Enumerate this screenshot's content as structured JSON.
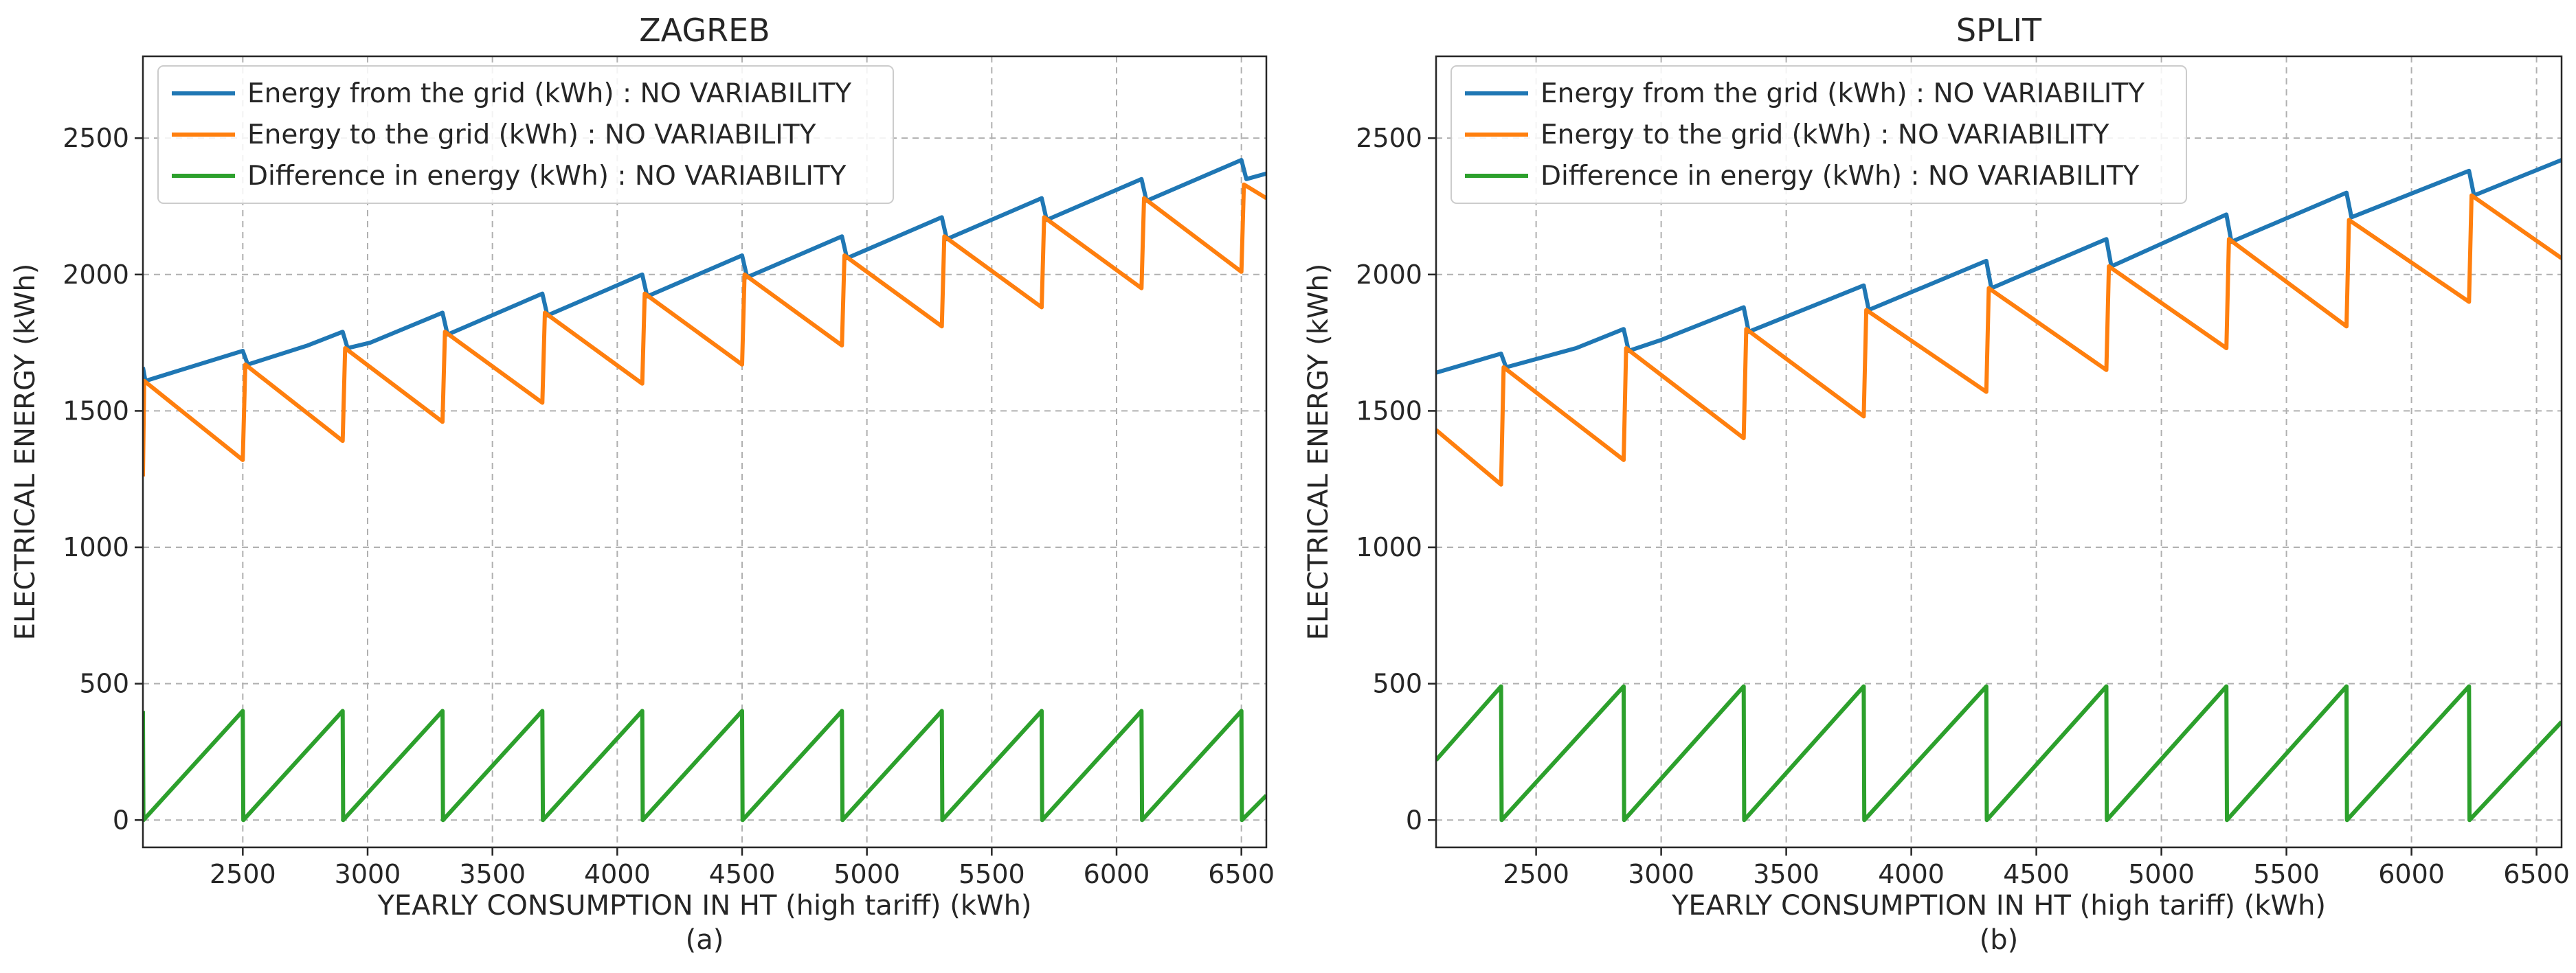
{
  "chart_data": [
    {
      "type": "line",
      "title": "ZAGREB",
      "caption": "(a)",
      "xlabel": "YEARLY CONSUMPTION IN HT (high tariff) (kWh)",
      "ylabel": "ELECTRICAL ENERGY (kWh)",
      "xlim": [
        2100,
        6600
      ],
      "ylim": [
        -100,
        2800
      ],
      "xticks": [
        2500,
        3000,
        3500,
        4000,
        4500,
        5000,
        5500,
        6000,
        6500
      ],
      "yticks": [
        0,
        500,
        1000,
        1500,
        2000,
        2500
      ],
      "grid": true,
      "legend_position": "top-left",
      "series": [
        {
          "name": "Energy from the grid (kWh) : NO VARIABILITY",
          "color": "#1f77b4",
          "points": [
            [
              2100,
              1660
            ],
            [
              2110,
              1610
            ],
            [
              2500,
              1720
            ],
            [
              2520,
              1670
            ],
            [
              2760,
              1740
            ],
            [
              2900,
              1790
            ],
            [
              2920,
              1730
            ],
            [
              3010,
              1750
            ],
            [
              3300,
              1860
            ],
            [
              3320,
              1780
            ],
            [
              3700,
              1930
            ],
            [
              3720,
              1850
            ],
            [
              4100,
              2000
            ],
            [
              4120,
              1920
            ],
            [
              4500,
              2070
            ],
            [
              4520,
              1990
            ],
            [
              4900,
              2140
            ],
            [
              4920,
              2060
            ],
            [
              5300,
              2210
            ],
            [
              5320,
              2130
            ],
            [
              5700,
              2280
            ],
            [
              5720,
              2200
            ],
            [
              6100,
              2350
            ],
            [
              6120,
              2270
            ],
            [
              6500,
              2420
            ],
            [
              6520,
              2350
            ],
            [
              6600,
              2370
            ]
          ]
        },
        {
          "name": "Energy to the grid (kWh) : NO VARIABILITY",
          "color": "#ff7f0e",
          "points": [
            [
              2100,
              1260
            ],
            [
              2105,
              1610
            ],
            [
              2500,
              1320
            ],
            [
              2510,
              1670
            ],
            [
              2900,
              1390
            ],
            [
              2910,
              1730
            ],
            [
              3300,
              1460
            ],
            [
              3310,
              1790
            ],
            [
              3700,
              1530
            ],
            [
              3710,
              1860
            ],
            [
              4100,
              1600
            ],
            [
              4110,
              1930
            ],
            [
              4500,
              1670
            ],
            [
              4510,
              2000
            ],
            [
              4900,
              1740
            ],
            [
              4910,
              2070
            ],
            [
              5300,
              1810
            ],
            [
              5310,
              2140
            ],
            [
              5700,
              1880
            ],
            [
              5710,
              2210
            ],
            [
              6100,
              1950
            ],
            [
              6110,
              2280
            ],
            [
              6500,
              2010
            ],
            [
              6510,
              2330
            ],
            [
              6600,
              2280
            ]
          ]
        },
        {
          "name": "Difference in energy (kWh) : NO VARIABILITY",
          "color": "#2ca02c",
          "points": [
            [
              2100,
              400
            ],
            [
              2102,
              0
            ],
            [
              2500,
              400
            ],
            [
              2502,
              0
            ],
            [
              2900,
              400
            ],
            [
              2902,
              0
            ],
            [
              3300,
              400
            ],
            [
              3302,
              0
            ],
            [
              3700,
              400
            ],
            [
              3702,
              0
            ],
            [
              4100,
              400
            ],
            [
              4102,
              0
            ],
            [
              4500,
              400
            ],
            [
              4502,
              0
            ],
            [
              4900,
              400
            ],
            [
              4902,
              0
            ],
            [
              5300,
              400
            ],
            [
              5302,
              0
            ],
            [
              5700,
              400
            ],
            [
              5702,
              0
            ],
            [
              6100,
              400
            ],
            [
              6102,
              0
            ],
            [
              6500,
              400
            ],
            [
              6502,
              0
            ],
            [
              6600,
              90
            ]
          ]
        }
      ]
    },
    {
      "type": "line",
      "title": "SPLIT",
      "caption": "(b)",
      "xlabel": "YEARLY CONSUMPTION IN HT (high tariff) (kWh)",
      "ylabel": "ELECTRICAL ENERGY (kWh)",
      "xlim": [
        2100,
        6600
      ],
      "ylim": [
        -100,
        2800
      ],
      "xticks": [
        2500,
        3000,
        3500,
        4000,
        4500,
        5000,
        5500,
        6000,
        6500
      ],
      "yticks": [
        0,
        500,
        1000,
        1500,
        2000,
        2500
      ],
      "grid": true,
      "legend_position": "top-left",
      "series": [
        {
          "name": "Energy from the grid (kWh) : NO VARIABILITY",
          "color": "#1f77b4",
          "points": [
            [
              2100,
              1640
            ],
            [
              2360,
              1710
            ],
            [
              2380,
              1660
            ],
            [
              2660,
              1730
            ],
            [
              2850,
              1800
            ],
            [
              2870,
              1720
            ],
            [
              3000,
              1760
            ],
            [
              3330,
              1880
            ],
            [
              3350,
              1790
            ],
            [
              3810,
              1960
            ],
            [
              3830,
              1870
            ],
            [
              4300,
              2050
            ],
            [
              4320,
              1950
            ],
            [
              4780,
              2130
            ],
            [
              4800,
              2030
            ],
            [
              5260,
              2220
            ],
            [
              5280,
              2120
            ],
            [
              5740,
              2300
            ],
            [
              5760,
              2210
            ],
            [
              6230,
              2380
            ],
            [
              6250,
              2290
            ],
            [
              6600,
              2420
            ]
          ]
        },
        {
          "name": "Energy to the grid (kWh) : NO VARIABILITY",
          "color": "#ff7f0e",
          "points": [
            [
              2100,
              1430
            ],
            [
              2360,
              1230
            ],
            [
              2370,
              1660
            ],
            [
              2850,
              1320
            ],
            [
              2860,
              1730
            ],
            [
              3330,
              1400
            ],
            [
              3340,
              1800
            ],
            [
              3810,
              1480
            ],
            [
              3820,
              1870
            ],
            [
              4300,
              1570
            ],
            [
              4310,
              1950
            ],
            [
              4780,
              1650
            ],
            [
              4790,
              2030
            ],
            [
              5260,
              1730
            ],
            [
              5270,
              2130
            ],
            [
              5740,
              1810
            ],
            [
              5750,
              2200
            ],
            [
              6230,
              1900
            ],
            [
              6240,
              2290
            ],
            [
              6600,
              2060
            ]
          ]
        },
        {
          "name": "Difference in energy (kWh) : NO VARIABILITY",
          "color": "#2ca02c",
          "points": [
            [
              2100,
              220
            ],
            [
              2360,
              490
            ],
            [
              2362,
              0
            ],
            [
              2850,
              490
            ],
            [
              2852,
              0
            ],
            [
              3330,
              490
            ],
            [
              3332,
              0
            ],
            [
              3810,
              490
            ],
            [
              3812,
              0
            ],
            [
              4300,
              490
            ],
            [
              4302,
              0
            ],
            [
              4780,
              490
            ],
            [
              4782,
              0
            ],
            [
              5260,
              490
            ],
            [
              5262,
              0
            ],
            [
              5740,
              490
            ],
            [
              5742,
              0
            ],
            [
              6230,
              490
            ],
            [
              6232,
              0
            ],
            [
              6600,
              360
            ]
          ]
        }
      ]
    }
  ]
}
